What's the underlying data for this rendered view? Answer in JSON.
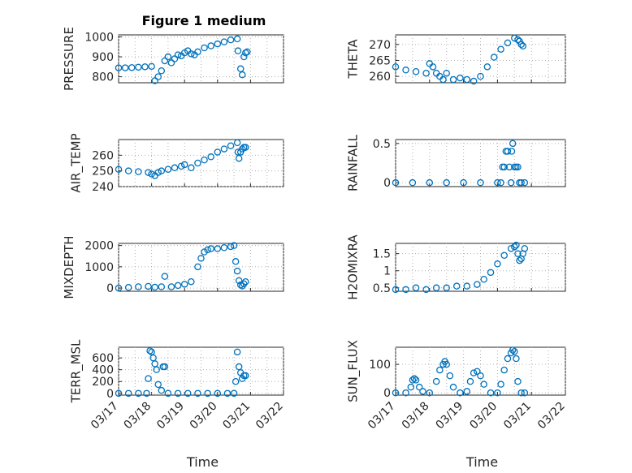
{
  "figure": {
    "title": "Figure 1 medium",
    "marker_color": "#0072BD",
    "xlabel": "Time",
    "xticks": [
      "03/17",
      "03/18",
      "03/19",
      "03/20",
      "03/21",
      "03/22"
    ]
  },
  "chart_data": [
    {
      "type": "scatter",
      "ylabel": "PRESSURE",
      "ylim": [
        770,
        1010
      ],
      "yticks": [
        "800",
        "900",
        "1000"
      ],
      "ytick_values": [
        800,
        900,
        1000
      ],
      "xlim": [
        0,
        5
      ],
      "grid": "on",
      "x": [
        0.0,
        0.2,
        0.4,
        0.6,
        0.8,
        1.0,
        1.1,
        1.2,
        1.3,
        1.4,
        1.5,
        1.6,
        1.7,
        1.8,
        1.9,
        2.0,
        2.1,
        2.2,
        2.3,
        2.4,
        2.6,
        2.8,
        3.0,
        3.2,
        3.4,
        3.6,
        3.62,
        3.7,
        3.75,
        3.8,
        3.85,
        3.9
      ],
      "y": [
        845,
        845,
        846,
        848,
        850,
        852,
        780,
        800,
        830,
        880,
        900,
        870,
        890,
        910,
        905,
        920,
        930,
        915,
        910,
        925,
        945,
        955,
        965,
        975,
        985,
        990,
        930,
        840,
        810,
        900,
        920,
        925
      ]
    },
    {
      "type": "scatter",
      "ylabel": "THETA",
      "ylim": [
        258,
        273
      ],
      "yticks": [
        "260",
        "265",
        "270"
      ],
      "ytick_values": [
        260,
        265,
        270
      ],
      "xlim": [
        0,
        5
      ],
      "grid": "on",
      "x": [
        0.0,
        0.3,
        0.6,
        0.9,
        1.0,
        1.1,
        1.2,
        1.3,
        1.4,
        1.5,
        1.7,
        1.9,
        2.1,
        2.3,
        2.5,
        2.7,
        2.9,
        3.1,
        3.3,
        3.5,
        3.6,
        3.65,
        3.7,
        3.75
      ],
      "y": [
        263,
        262,
        261.5,
        261,
        264,
        263,
        261,
        260,
        259,
        261,
        259,
        259.5,
        259,
        258.5,
        260,
        263,
        266,
        268.5,
        270.5,
        272,
        271.5,
        271,
        270,
        269.5
      ]
    },
    {
      "type": "scatter",
      "ylabel": "AIR_TEMP",
      "ylim": [
        240,
        270
      ],
      "yticks": [
        "240",
        "250",
        "260"
      ],
      "ytick_values": [
        240,
        250,
        260
      ],
      "xlim": [
        0,
        5
      ],
      "grid": "on",
      "x": [
        0.0,
        0.3,
        0.6,
        0.9,
        1.0,
        1.1,
        1.2,
        1.3,
        1.5,
        1.7,
        1.9,
        2.0,
        2.2,
        2.4,
        2.6,
        2.8,
        3.0,
        3.2,
        3.4,
        3.6,
        3.62,
        3.65,
        3.7,
        3.75,
        3.8,
        3.85
      ],
      "y": [
        251,
        250,
        249.5,
        249,
        248,
        247,
        249,
        250,
        251,
        252,
        253,
        254,
        252,
        255,
        257,
        259,
        262,
        264,
        266,
        268,
        262,
        258,
        262,
        264,
        265,
        265
      ]
    },
    {
      "type": "scatter",
      "ylabel": "RAINFALL",
      "ylim": [
        -0.05,
        0.55
      ],
      "yticks": [
        "0",
        "0.5"
      ],
      "ytick_values": [
        0,
        0.5
      ],
      "xlim": [
        0,
        5
      ],
      "grid": "on",
      "x": [
        0.0,
        0.5,
        1.0,
        1.5,
        2.0,
        2.5,
        3.0,
        3.1,
        3.15,
        3.2,
        3.25,
        3.3,
        3.35,
        3.4,
        3.42,
        3.45,
        3.5,
        3.55,
        3.6,
        3.65,
        3.7,
        3.8
      ],
      "y": [
        0,
        0,
        0,
        0,
        0,
        0,
        0,
        0,
        0.2,
        0.2,
        0.4,
        0.4,
        0.2,
        0,
        0.4,
        0.5,
        0.2,
        0.2,
        0.2,
        0,
        0,
        0
      ]
    },
    {
      "type": "scatter",
      "ylabel": "MIXDEPTH",
      "ylim": [
        -150,
        2100
      ],
      "yticks": [
        "0",
        "1000",
        "2000"
      ],
      "ytick_values": [
        0,
        1000,
        2000
      ],
      "xlim": [
        0,
        5
      ],
      "grid": "on",
      "x": [
        0.0,
        0.3,
        0.6,
        0.9,
        1.1,
        1.3,
        1.4,
        1.6,
        1.8,
        2.0,
        2.2,
        2.4,
        2.5,
        2.6,
        2.7,
        2.8,
        3.0,
        3.2,
        3.4,
        3.5,
        3.55,
        3.6,
        3.65,
        3.7,
        3.75,
        3.8,
        3.85
      ],
      "y": [
        0,
        30,
        60,
        80,
        40,
        60,
        550,
        60,
        120,
        180,
        300,
        1000,
        1400,
        1700,
        1800,
        1850,
        1850,
        1900,
        1950,
        2000,
        1250,
        800,
        350,
        150,
        100,
        200,
        300
      ]
    },
    {
      "type": "scatter",
      "ylabel": "H2OMIXRA",
      "ylim": [
        0.4,
        1.8
      ],
      "yticks": [
        "0.5",
        "1",
        "1.5"
      ],
      "ytick_values": [
        0.5,
        1,
        1.5
      ],
      "xlim": [
        0,
        5
      ],
      "grid": "on",
      "x": [
        0.0,
        0.3,
        0.6,
        0.9,
        1.2,
        1.5,
        1.8,
        2.1,
        2.4,
        2.6,
        2.8,
        3.0,
        3.2,
        3.4,
        3.5,
        3.55,
        3.6,
        3.65,
        3.7,
        3.75,
        3.8
      ],
      "y": [
        0.45,
        0.45,
        0.5,
        0.45,
        0.5,
        0.5,
        0.55,
        0.55,
        0.6,
        0.75,
        0.95,
        1.2,
        1.45,
        1.65,
        1.7,
        1.75,
        1.5,
        1.3,
        1.35,
        1.5,
        1.65
      ]
    },
    {
      "type": "scatter",
      "ylabel": "TERR_MSL",
      "ylim": [
        -30,
        780
      ],
      "yticks": [
        "0",
        "200",
        "400",
        "600"
      ],
      "ytick_values": [
        0,
        200,
        400,
        600
      ],
      "xlim": [
        0,
        5
      ],
      "grid": "on",
      "x": [
        0.0,
        0.3,
        0.6,
        0.85,
        0.9,
        0.95,
        1.0,
        1.05,
        1.1,
        1.15,
        1.2,
        1.3,
        1.35,
        1.4,
        1.5,
        1.8,
        2.1,
        2.4,
        2.7,
        3.0,
        3.3,
        3.5,
        3.55,
        3.6,
        3.65,
        3.7,
        3.75,
        3.8,
        3.85
      ],
      "y": [
        0,
        0,
        0,
        0,
        250,
        720,
        700,
        600,
        500,
        400,
        150,
        50,
        450,
        450,
        0,
        0,
        0,
        0,
        0,
        0,
        0,
        0,
        200,
        700,
        450,
        350,
        250,
        300,
        300
      ]
    },
    {
      "type": "scatter",
      "ylabel": "SUN_FLUX",
      "ylim": [
        -8,
        160
      ],
      "yticks": [
        "0",
        "100"
      ],
      "ytick_values": [
        0,
        100
      ],
      "xlim": [
        0,
        5
      ],
      "grid": "on",
      "x": [
        0.0,
        0.3,
        0.45,
        0.5,
        0.55,
        0.6,
        0.7,
        0.8,
        1.0,
        1.2,
        1.3,
        1.4,
        1.45,
        1.5,
        1.6,
        1.7,
        1.9,
        2.1,
        2.2,
        2.3,
        2.4,
        2.5,
        2.6,
        2.8,
        3.0,
        3.1,
        3.2,
        3.3,
        3.4,
        3.45,
        3.5,
        3.55,
        3.6,
        3.7,
        3.8
      ],
      "y": [
        0,
        0,
        20,
        45,
        50,
        45,
        20,
        5,
        0,
        40,
        80,
        100,
        110,
        100,
        60,
        20,
        0,
        5,
        40,
        70,
        75,
        60,
        30,
        0,
        0,
        30,
        80,
        120,
        140,
        150,
        145,
        120,
        40,
        0,
        0
      ]
    }
  ]
}
